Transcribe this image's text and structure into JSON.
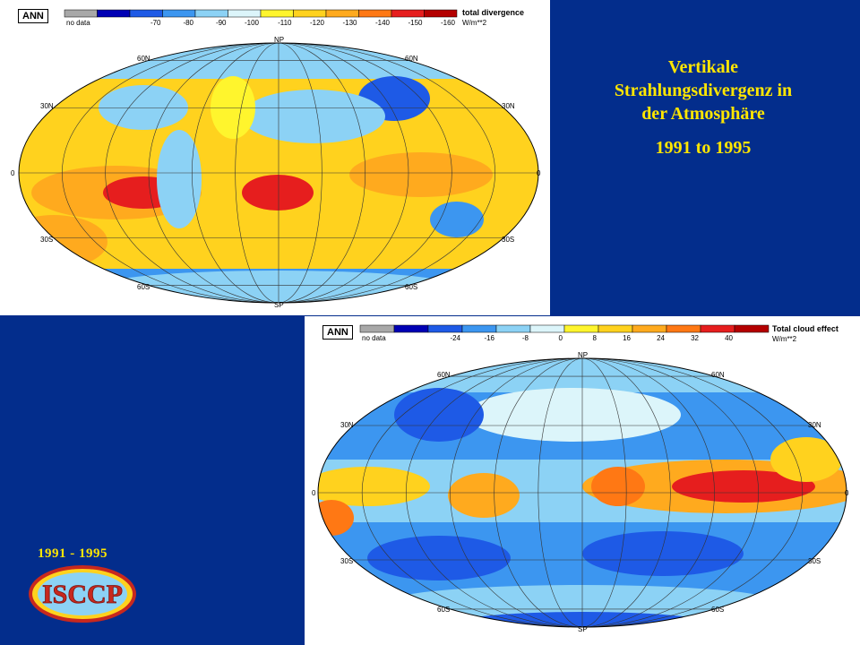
{
  "title": {
    "line1": "Vertikale",
    "line2": "Strahlungsdivergenz in",
    "line3": "der Atmosphäre",
    "years": "1991 to 1995"
  },
  "left_years": "1991 - 1995",
  "logo_text": "ISCCP",
  "map_top": {
    "season": "ANN",
    "variable": "total divergence",
    "unit": "W/m**2",
    "legend": [
      {
        "label": "no data",
        "color": "#a8a8a8"
      },
      {
        "label": "",
        "color": "#0000b4"
      },
      {
        "label": "-70",
        "color": "#1e5ae6"
      },
      {
        "label": "-80",
        "color": "#3c96f0"
      },
      {
        "label": "-90",
        "color": "#8cd2f5"
      },
      {
        "label": "-100",
        "color": "#dcf5fa"
      },
      {
        "label": "-110",
        "color": "#fff52d"
      },
      {
        "label": "-120",
        "color": "#ffd21e"
      },
      {
        "label": "-130",
        "color": "#ffaa1e"
      },
      {
        "label": "-140",
        "color": "#ff7814"
      },
      {
        "label": "-150",
        "color": "#e61e1e"
      },
      {
        "label": "-160",
        "color": "#b40000"
      }
    ],
    "lat_labels": {
      "np": "NP",
      "sp": "SP",
      "n60": "60N",
      "s60": "60S",
      "n30": "30N",
      "s30": "30S",
      "eq": "0"
    }
  },
  "map_bottom": {
    "season": "ANN",
    "variable": "Total cloud effect",
    "unit": "W/m**2",
    "legend": [
      {
        "label": "no data",
        "color": "#a8a8a8"
      },
      {
        "label": "",
        "color": "#0000b4"
      },
      {
        "label": "-24",
        "color": "#1e5ae6"
      },
      {
        "label": "-16",
        "color": "#3c96f0"
      },
      {
        "label": "-8",
        "color": "#8cd2f5"
      },
      {
        "label": "0",
        "color": "#dcf5fa"
      },
      {
        "label": "8",
        "color": "#fff52d"
      },
      {
        "label": "16",
        "color": "#ffd21e"
      },
      {
        "label": "24",
        "color": "#ffaa1e"
      },
      {
        "label": "32",
        "color": "#ff7814"
      },
      {
        "label": "40",
        "color": "#e61e1e"
      },
      {
        "label": "",
        "color": "#b40000"
      }
    ],
    "lat_labels": {
      "np": "NP",
      "sp": "SP",
      "n60": "60N",
      "s60": "60S",
      "n30": "30N",
      "s30": "30S",
      "eq": "0"
    }
  },
  "colors": {
    "background": "#032d8c",
    "title": "#ffe600"
  }
}
